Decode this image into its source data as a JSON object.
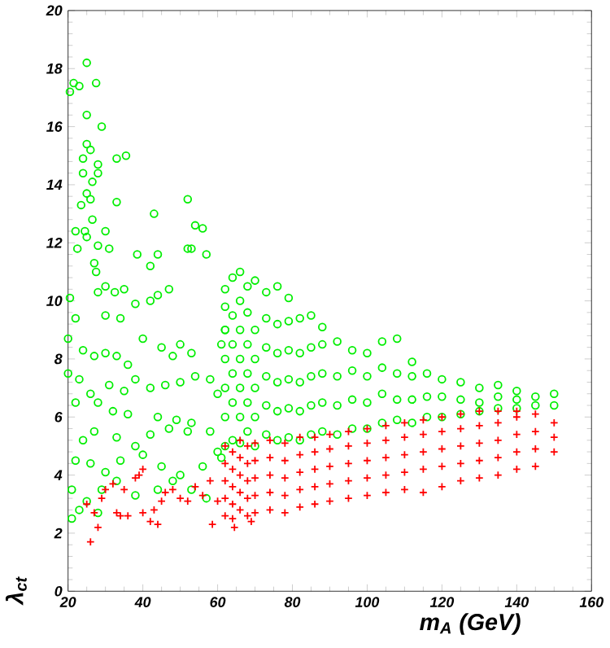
{
  "chart_data": {
    "type": "scatter",
    "xlabel": "m$_{A}$ (GeV)",
    "ylabel": "λ$_{ct}$",
    "xlim": [
      20,
      160
    ],
    "ylim": [
      0,
      20
    ],
    "xticks": [
      20,
      40,
      60,
      80,
      100,
      120,
      140,
      160
    ],
    "yticks": [
      0,
      2,
      4,
      6,
      8,
      10,
      12,
      14,
      16,
      18,
      20
    ],
    "series": [
      {
        "color": "#00ee00",
        "marker": "circle",
        "x": [
          20.5,
          21.5,
          23,
          25,
          27.5,
          25,
          29,
          25,
          26,
          24,
          28,
          24,
          28,
          26.5,
          25,
          26,
          23.5,
          33,
          26.5,
          22,
          24.5,
          25,
          28,
          30,
          31,
          22.5,
          27,
          27.5,
          33,
          35.5,
          38.5,
          42,
          43,
          44,
          47,
          52,
          53,
          52,
          54,
          56,
          57,
          28,
          30,
          32.5,
          35,
          20.5,
          38,
          42,
          44,
          22,
          30,
          34,
          20,
          24,
          27,
          30,
          33,
          36,
          40,
          45,
          48,
          50,
          53,
          20,
          23,
          26,
          31,
          35,
          38,
          42,
          46,
          50,
          54,
          22,
          28,
          32,
          36,
          44,
          49,
          53,
          58,
          60,
          24,
          27,
          33,
          38,
          42,
          47,
          52,
          58,
          22,
          26,
          30,
          34,
          40,
          45,
          50,
          56,
          60,
          21,
          25,
          29,
          33,
          38,
          44,
          48,
          53,
          57,
          21,
          23,
          28,
          61,
          61,
          62,
          62,
          62,
          62,
          62,
          62,
          62,
          62,
          64,
          64,
          64,
          64,
          64,
          64,
          66,
          66,
          66,
          66,
          66,
          66,
          66,
          68,
          68,
          68,
          68,
          68,
          68,
          70,
          70,
          70,
          70,
          70,
          70,
          73,
          73,
          73,
          73,
          73,
          73,
          76,
          76,
          76,
          76,
          76,
          76,
          79,
          79,
          79,
          79,
          79,
          79,
          82,
          82,
          82,
          82,
          82,
          85,
          85,
          85,
          85,
          85,
          88,
          88,
          88,
          88,
          88,
          92,
          92,
          92,
          92,
          96,
          96,
          96,
          96,
          100,
          100,
          100,
          100,
          104,
          104,
          104,
          104,
          108,
          108,
          108,
          108,
          112,
          112,
          112,
          112,
          116,
          116,
          116,
          120,
          120,
          120,
          125,
          125,
          125,
          130,
          130,
          130,
          135,
          135,
          135,
          140,
          140,
          140,
          145,
          145,
          150,
          150
        ],
        "values": [
          17.2,
          17.5,
          17.4,
          18.2,
          17.5,
          16.4,
          16,
          15.4,
          15.2,
          14.9,
          14.7,
          14.4,
          14.4,
          14.1,
          13.7,
          13.5,
          13.3,
          13.4,
          12.8,
          12.4,
          12.4,
          12.2,
          11.9,
          12.4,
          11.8,
          11.8,
          11.3,
          11,
          14.9,
          15,
          11.6,
          11.2,
          13,
          11.6,
          10.4,
          11.8,
          11.8,
          13.5,
          12.6,
          12.5,
          11.6,
          10.3,
          10.5,
          10.3,
          10.4,
          10.1,
          9.9,
          10,
          10.2,
          9.4,
          9.5,
          9.4,
          8.7,
          8.3,
          8.1,
          8.2,
          8.1,
          7.8,
          8.7,
          8.4,
          8.1,
          8.5,
          8.2,
          7.5,
          7.3,
          6.8,
          7.1,
          6.9,
          7.3,
          7,
          7.1,
          7.2,
          7.4,
          6.5,
          6.5,
          6.2,
          6.1,
          6,
          5.9,
          5.8,
          7.3,
          6.8,
          5.2,
          5.5,
          5.3,
          5,
          5.4,
          5.6,
          5.5,
          5.5,
          4.5,
          4.4,
          4.1,
          4.5,
          4.7,
          4.3,
          4,
          4.3,
          4.8,
          3.5,
          3.1,
          3.5,
          3.8,
          3.3,
          3.5,
          3.8,
          3.5,
          3.2,
          2.5,
          2.8,
          2.7,
          4.6,
          8.5,
          9,
          5,
          6,
          7,
          8,
          9,
          9.8,
          10.4,
          5.2,
          6.5,
          7.5,
          8.5,
          9.5,
          10.8,
          5.1,
          6,
          7,
          8,
          9,
          10,
          11,
          5.5,
          6.5,
          7.5,
          8.5,
          9.6,
          10.5,
          5,
          6,
          7,
          8,
          9,
          10.7,
          5.4,
          6.4,
          7.4,
          8.4,
          9.4,
          10.3,
          5.2,
          6.2,
          7.2,
          8.2,
          9.2,
          10.5,
          5.3,
          6.3,
          7.3,
          8.3,
          9.3,
          10.1,
          5.2,
          6.2,
          7.2,
          8.2,
          9.4,
          5.4,
          6.4,
          7.4,
          8.4,
          9.5,
          5.5,
          6.5,
          7.5,
          8.5,
          9.1,
          5.4,
          6.4,
          7.4,
          8.6,
          5.6,
          6.6,
          7.6,
          8.3,
          5.6,
          6.5,
          7.4,
          8.2,
          5.8,
          6.8,
          7.7,
          8.6,
          5.9,
          6.6,
          7.5,
          8.7,
          5.8,
          6.6,
          7.4,
          7.9,
          6,
          6.7,
          7.5,
          6,
          6.7,
          7.3,
          6.1,
          6.6,
          7.2,
          6.2,
          6.5,
          7,
          6.3,
          6.7,
          7.1,
          6.3,
          6.6,
          6.9,
          6.4,
          6.7,
          6.4,
          6.8
        ]
      },
      {
        "color": "#ff0000",
        "marker": "cross",
        "x": [
          25,
          26,
          27,
          28,
          29,
          30,
          32,
          33,
          34,
          35,
          36,
          38,
          39,
          40,
          40,
          42,
          43,
          44,
          45,
          46,
          48,
          50,
          52,
          54,
          56,
          58,
          60,
          58.6,
          62,
          62,
          62,
          62,
          62,
          64,
          64,
          64,
          64,
          64,
          64.5,
          66,
          66,
          66,
          66,
          66,
          68,
          68,
          68,
          68,
          68,
          69,
          70,
          70,
          70,
          70,
          70,
          74,
          74,
          74,
          74,
          74,
          78,
          78,
          78,
          78,
          78,
          82,
          82,
          82,
          82,
          82,
          86,
          86,
          86,
          86,
          86,
          90,
          90,
          90,
          90,
          90,
          95,
          95,
          95,
          95,
          95,
          100,
          100,
          100,
          100,
          100,
          105,
          105,
          105,
          105,
          105,
          110,
          110,
          110,
          110,
          110,
          115,
          115,
          115,
          115,
          115,
          120,
          120,
          120,
          120,
          120,
          125,
          125,
          125,
          125,
          125,
          130,
          130,
          130,
          130,
          130,
          135,
          135,
          135,
          135,
          135,
          140,
          140,
          140,
          140,
          140,
          145,
          145,
          145,
          145,
          150,
          150,
          150
        ],
        "values": [
          3,
          1.7,
          2.7,
          2.2,
          3.2,
          3.5,
          3.7,
          2.7,
          2.6,
          3.5,
          2.6,
          3.9,
          4,
          2.7,
          4.2,
          2.4,
          2.8,
          2.3,
          3.1,
          3.4,
          3.5,
          3.2,
          3.1,
          3.6,
          3.3,
          3.8,
          3.1,
          2.3,
          2.6,
          3.2,
          3.8,
          4.4,
          5,
          2.5,
          3,
          3.6,
          4.2,
          4.8,
          2.2,
          2.8,
          3.4,
          4,
          4.6,
          5.2,
          2.6,
          3.2,
          3.8,
          4.4,
          5,
          2.4,
          2.7,
          3.3,
          3.9,
          4.5,
          5.1,
          2.8,
          3.4,
          4,
          4.6,
          5.2,
          2.7,
          3.3,
          3.9,
          4.5,
          5.1,
          2.9,
          3.5,
          4.1,
          4.7,
          5.3,
          3,
          3.6,
          4.2,
          4.8,
          5.3,
          3.1,
          3.7,
          4.3,
          4.9,
          5.4,
          3.2,
          3.8,
          4.4,
          5,
          5.5,
          3.3,
          3.9,
          4.5,
          5.1,
          5.6,
          3.4,
          4,
          4.6,
          5.2,
          5.7,
          3.5,
          4.1,
          4.7,
          5.3,
          5.8,
          3.4,
          4.2,
          4.8,
          5.4,
          5.9,
          3.6,
          4.3,
          4.9,
          5.5,
          6,
          3.8,
          4.4,
          5,
          5.6,
          6.1,
          3.9,
          4.5,
          5.1,
          5.7,
          6.2,
          4,
          4.6,
          5.2,
          5.8,
          6.2,
          4.2,
          4.8,
          5.4,
          6,
          6.2,
          4.3,
          4.9,
          5.5,
          6.1,
          4.8,
          5.3,
          5.8
        ]
      }
    ]
  }
}
